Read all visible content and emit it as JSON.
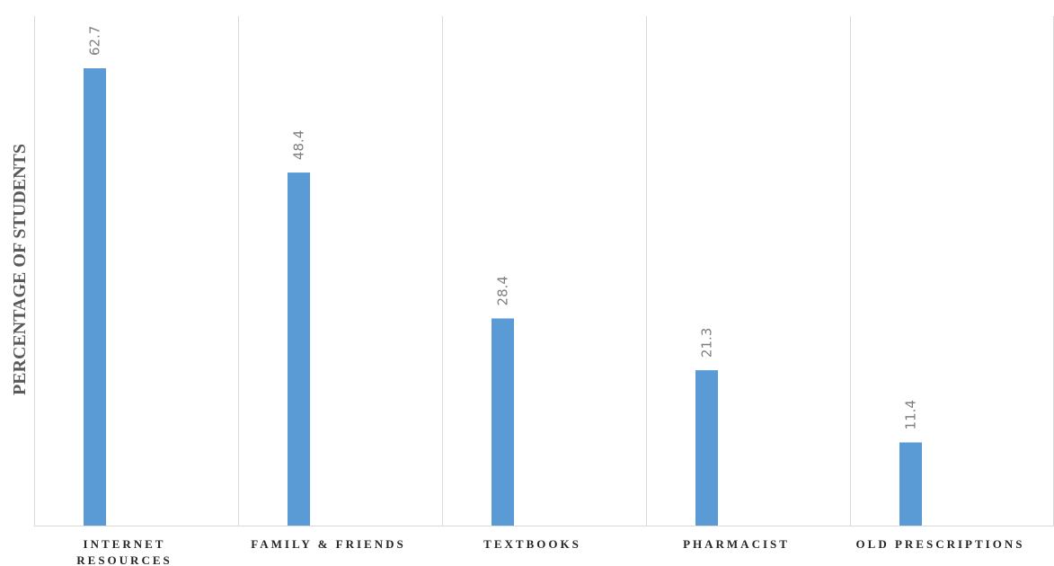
{
  "chart_data": {
    "type": "bar",
    "title": "",
    "xlabel": "",
    "ylabel": "PERCENTAGE OF STUDENTS",
    "categories": [
      "INTERNET RESOURCES",
      "FAMILY & FRIENDS",
      "TEXTBOOKS",
      "PHARMACIST",
      "OLD PRESCRIPTIONS"
    ],
    "category_lines": [
      [
        "INTERNET",
        "RESOURCES"
      ],
      [
        "FAMILY & FRIENDS"
      ],
      [
        "TEXTBOOKS"
      ],
      [
        "PHARMACIST"
      ],
      [
        "OLD PRESCRIPTIONS"
      ]
    ],
    "values": [
      62.7,
      48.4,
      28.4,
      21.3,
      11.4
    ],
    "value_labels": [
      "62.7",
      "48.4",
      "28.4",
      "21.3",
      "11.4"
    ],
    "ylim": [
      0,
      70
    ],
    "grid": "vertical separators",
    "legend": "none",
    "bar_color": "#5b9bd5",
    "data_label_color": "#7f7f7f",
    "grid_color": "#d9d9d9"
  }
}
